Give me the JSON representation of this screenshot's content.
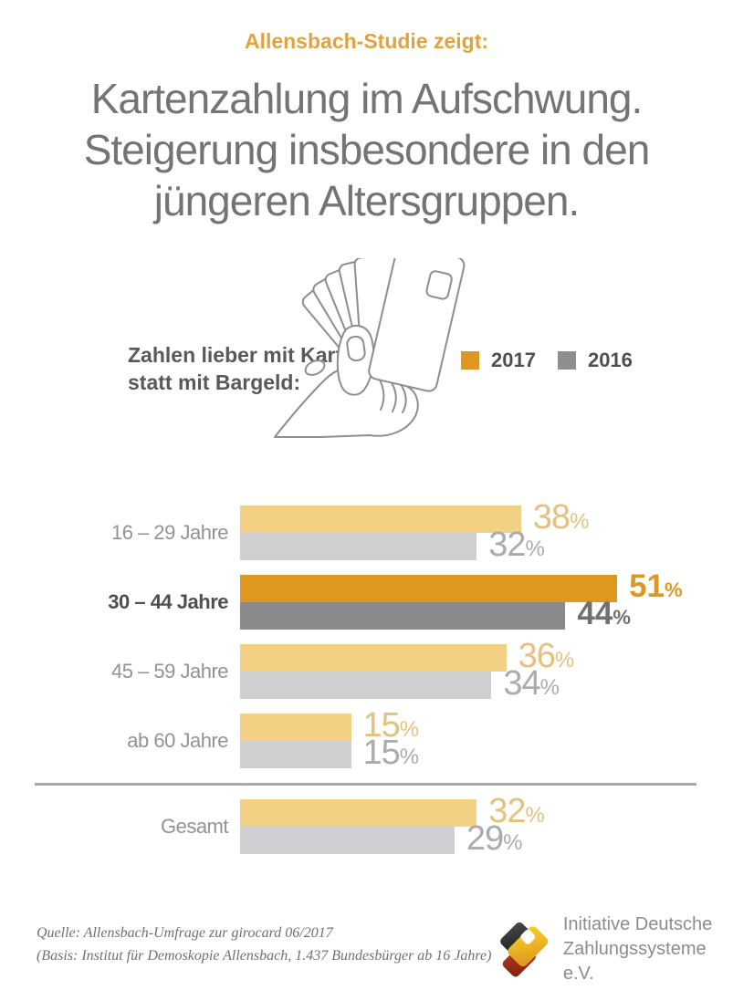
{
  "kicker": "Allensbach-Studie zeigt:",
  "title_lines": [
    "Kartenzahlung im Aufschwung.",
    "Steigerung insbesondere in den",
    "jüngeren Altersgruppen."
  ],
  "question": {
    "line1": "Zahlen lieber mit Karte",
    "line2": "statt mit Bargeld:"
  },
  "legend": [
    {
      "label": "2017",
      "color": "#DF981F"
    },
    {
      "label": "2016",
      "color": "#8E8E90"
    }
  ],
  "chart_data": {
    "type": "bar",
    "orientation": "horizontal",
    "unit": "%",
    "categories": [
      "16 – 29 Jahre",
      "30 – 44 Jahre",
      "45 – 59 Jahre",
      "ab 60 Jahre",
      "Gesamt"
    ],
    "series": [
      {
        "name": "2017",
        "values": [
          38,
          51,
          36,
          15,
          32
        ]
      },
      {
        "name": "2016",
        "values": [
          32,
          44,
          34,
          15,
          29
        ]
      }
    ],
    "highlight_category": "30 – 44 Jahre",
    "separator_before": "Gesamt",
    "xlim": [
      0,
      60
    ],
    "grid": false,
    "value_labels": true,
    "legend_position": "top-right"
  },
  "footer": {
    "source_line1": "Quelle: Allensbach-Umfrage zur girocard 06/2017",
    "source_line2": "(Basis: Institut für Demoskopie Allensbach, 1.437 Bundesbürger ab 16 Jahre)",
    "logo_line1": "Initiative Deutsche",
    "logo_line2": "Zahlungssysteme e.V."
  },
  "colors": {
    "kicker_orange": "#E2A33C",
    "accent_orange": "#DF981F",
    "title_gray": "#737476",
    "bar_2017_light": "#F2D184",
    "bar_2016_light": "#CFCFD1",
    "bar_2017_highlight": "#DF981F",
    "bar_2016_highlight": "#89898B",
    "value_2017_light": "#E6C17D",
    "value_2016_light": "#ABABAD",
    "value_2016_highlight": "#707073",
    "label_gray": "#939395",
    "label_dark": "#4E4F51",
    "separator_gray": "#A9A9AB"
  }
}
